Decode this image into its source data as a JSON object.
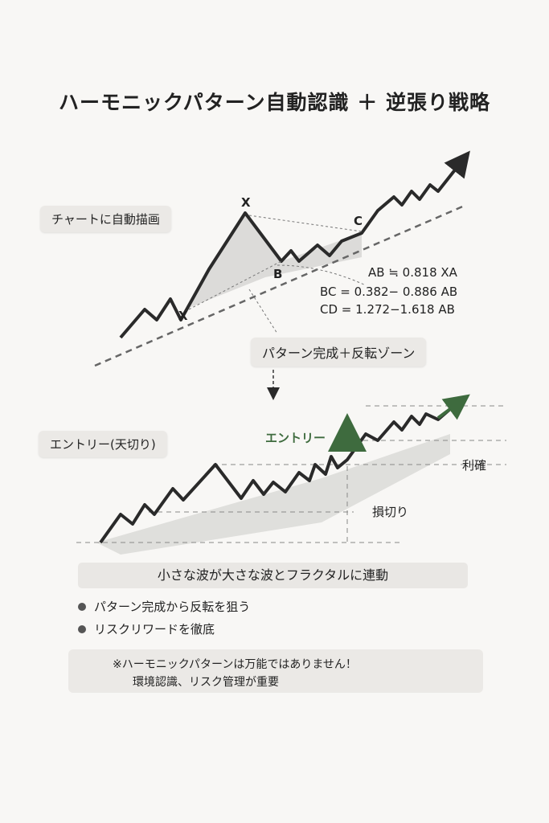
{
  "title": "ハーモニックパターン自動認識 ＋ 逆張り戦略",
  "top_section": {
    "callout": "チャートに自動描画",
    "points": {
      "x1": "X",
      "x2": "X",
      "b": "B",
      "c": "C"
    },
    "ratios": [
      "AB ≒ 0.818 XA",
      "BC = 0.382− 0.886 AB",
      "CD = 1.272−1.618 AB"
    ],
    "zone_label": "パターン完成＋反転ゾーン"
  },
  "bottom_section": {
    "callout": "エントリー(天切り)",
    "entry_label": "エントリー",
    "take_profit": "利確",
    "stop_loss": "損切り"
  },
  "fractal_bar": "小さな波が大さな波とフラクタルに連動",
  "bullets": [
    "パターン完成から反転を狙う",
    "リスクリワードを徹底"
  ],
  "warning": {
    "line1": "※ハーモニックパターンは万能ではありません！",
    "line2": "環境認識、リスク管理が重要"
  },
  "colors": {
    "accent_green": "#3e6b3e",
    "line": "#2a2a2a"
  }
}
